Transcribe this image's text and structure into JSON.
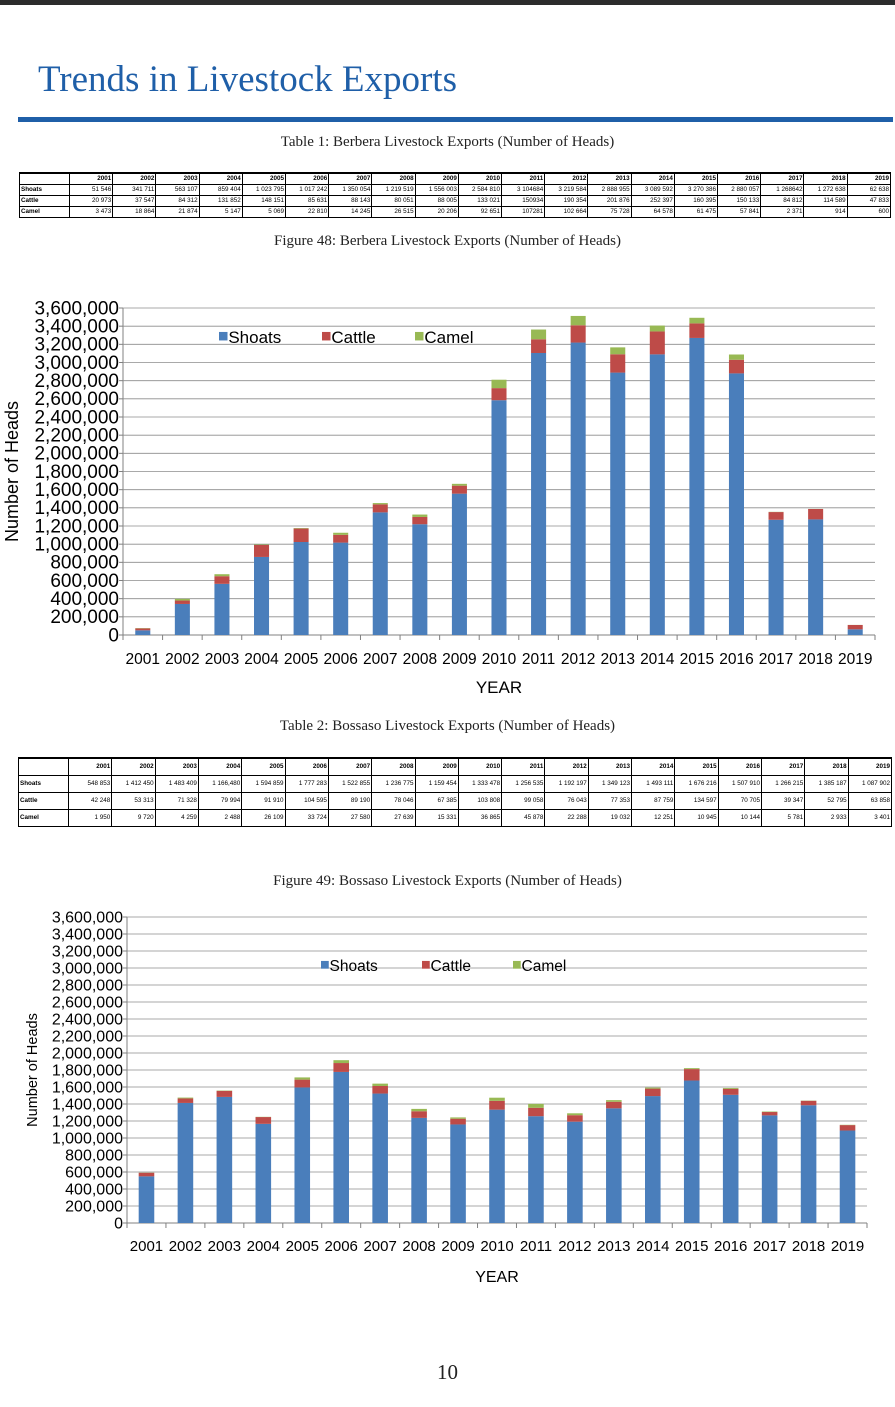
{
  "page": {
    "title": "Trends in Livestock Exports",
    "page_number": "10"
  },
  "table1": {
    "caption": "Table 1: Berbera Livestock Exports (Number of Heads)",
    "years": [
      "2001",
      "2002",
      "2003",
      "2004",
      "2005",
      "2006",
      "2007",
      "2008",
      "2009",
      "2010",
      "2011",
      "2012",
      "2013",
      "2014",
      "2015",
      "2016",
      "2017",
      "2018",
      "2019"
    ],
    "rows": [
      {
        "label": "Shoats",
        "values": [
          "51 546",
          "341 711",
          "563 107",
          "859 404",
          "1 023 795",
          "1 017 242",
          "1 350 054",
          "1 219 519",
          "1 556 003",
          "2 584 810",
          "3 104684",
          "3 219 584",
          "2 888 955",
          "3 089 592",
          "3 270 386",
          "2 880 057",
          "1 268642",
          "1 272 638",
          "62 638"
        ]
      },
      {
        "label": "Cattle",
        "values": [
          "20 973",
          "37 547",
          "84 312",
          "131 852",
          "148 151",
          "85 631",
          "88 143",
          "80 051",
          "88 005",
          "133 021",
          "150934",
          "190 354",
          "201 876",
          "252 397",
          "160 395",
          "150 133",
          "84 812",
          "114 589",
          "47 833"
        ]
      },
      {
        "label": "Camel",
        "values": [
          "3 473",
          "18 864",
          "21 874",
          "5 147",
          "5 069",
          "22 810",
          "14 245",
          "26 515",
          "20 206",
          "92 651",
          "107281",
          "102 664",
          "75 728",
          "64 578",
          "61 475",
          "57 841",
          "2 371",
          "914",
          "600"
        ]
      }
    ]
  },
  "table2": {
    "caption": "Table 2: Bossaso Livestock Exports (Number of Heads)",
    "years": [
      "2001",
      "2002",
      "2003",
      "2004",
      "2005",
      "2006",
      "2007",
      "2008",
      "2009",
      "2010",
      "2011",
      "2012",
      "2013",
      "2014",
      "2015",
      "2016",
      "2017",
      "2018",
      "2019"
    ],
    "rows": [
      {
        "label": "Shoats",
        "values": [
          "548 853",
          "1 412 450",
          "1 483 409",
          "1 166,480",
          "1 594 859",
          "1 777 283",
          "1 522 855",
          "1 236 775",
          "1 159 454",
          "1 333 478",
          "1 256 535",
          "1 192 197",
          "1 349 123",
          "1 493 111",
          "1 676 216",
          "1 507 910",
          "1 266 215",
          "1 385 187",
          "1 087 902"
        ]
      },
      {
        "label": "Cattle",
        "values": [
          "42 248",
          "53 313",
          "71 328",
          "79 994",
          "91 910",
          "104 595",
          "89 190",
          "78 046",
          "67 385",
          "103 808",
          "99 058",
          "76 043",
          "77 353",
          "87 759",
          "134 597",
          "70 705",
          "39 347",
          "52 795",
          "63 858"
        ]
      },
      {
        "label": "Camel",
        "values": [
          "1 950",
          "9 720",
          "4 259",
          "2 488",
          "26 109",
          "33 724",
          "27 580",
          "27 639",
          "15 331",
          "36 865",
          "45 878",
          "22 288",
          "19 032",
          "12 251",
          "10 945",
          "10 144",
          "5 781",
          "2 933",
          "3 401"
        ]
      }
    ]
  },
  "colors": {
    "shoats": "#4a7ebb",
    "cattle": "#be4b48",
    "camel": "#98b954"
  },
  "chart_data": [
    {
      "type": "bar",
      "stacked": true,
      "title": "Figure 48: Berbera Livestock Exports (Number of Heads)",
      "xlabel": "YEAR",
      "ylabel": "Number of Heads",
      "ylim": [
        0,
        3600000
      ],
      "ytick_step": 200000,
      "ytick_labels": [
        "0",
        "200,000",
        "400,000",
        "600,000",
        "800,000",
        "1,000,000",
        "1,200,000",
        "1,400,000",
        "1,600,000",
        "1,800,000",
        "2,000,000",
        "2,200,000",
        "2,400,000",
        "2,600,000",
        "2,800,000",
        "3,000,000",
        "3,200,000",
        "3,400,000",
        "3,600,000"
      ],
      "grid": true,
      "legend_position": "top-left",
      "categories": [
        "2001",
        "2002",
        "2003",
        "2004",
        "2005",
        "2006",
        "2007",
        "2008",
        "2009",
        "2010",
        "2011",
        "2012",
        "2013",
        "2014",
        "2015",
        "2016",
        "2017",
        "2018",
        "2019"
      ],
      "series": [
        {
          "name": "Shoats",
          "color": "#4a7ebb",
          "values": [
            51546,
            341711,
            563107,
            859404,
            1023795,
            1017242,
            1350054,
            1219519,
            1556003,
            2584810,
            3104684,
            3219584,
            2888955,
            3089592,
            3270386,
            2880057,
            1268642,
            1272638,
            62638
          ]
        },
        {
          "name": "Cattle",
          "color": "#be4b48",
          "values": [
            20973,
            37547,
            84312,
            131852,
            148151,
            85631,
            88143,
            80051,
            88005,
            133021,
            150934,
            190354,
            201876,
            252397,
            160395,
            150133,
            84812,
            114589,
            47833
          ]
        },
        {
          "name": "Camel",
          "color": "#98b954",
          "values": [
            3473,
            18864,
            21874,
            5147,
            5069,
            22810,
            14245,
            26515,
            20206,
            92651,
            107281,
            102664,
            75728,
            64578,
            61475,
            57841,
            2371,
            914,
            600
          ]
        }
      ]
    },
    {
      "type": "bar",
      "stacked": true,
      "title": "Figure 49: Bossaso Livestock Exports (Number of Heads)",
      "xlabel": "YEAR",
      "ylabel": "Number of Heads",
      "ylim": [
        0,
        3600000
      ],
      "ytick_step": 200000,
      "ytick_labels": [
        "0",
        "200,000",
        "400,000",
        "600,000",
        "800,000",
        "1,000,000",
        "1,200,000",
        "1,400,000",
        "1,600,000",
        "1,800,000",
        "2,000,000",
        "2,200,000",
        "2,400,000",
        "2,600,000",
        "2,800,000",
        "3,000,000",
        "3,200,000",
        "3,400,000",
        "3,600,000"
      ],
      "grid": true,
      "legend_position": "top-center",
      "categories": [
        "2001",
        "2002",
        "2003",
        "2004",
        "2005",
        "2006",
        "2007",
        "2008",
        "2009",
        "2010",
        "2011",
        "2012",
        "2013",
        "2014",
        "2015",
        "2016",
        "2017",
        "2018",
        "2019"
      ],
      "series": [
        {
          "name": "Shoats",
          "color": "#4a7ebb",
          "values": [
            548853,
            1412450,
            1483409,
            1166480,
            1594859,
            1777283,
            1522855,
            1236775,
            1159454,
            1333478,
            1256535,
            1192197,
            1349123,
            1493111,
            1676216,
            1507910,
            1266215,
            1385187,
            1087902
          ]
        },
        {
          "name": "Cattle",
          "color": "#be4b48",
          "values": [
            42248,
            53313,
            71328,
            79994,
            91910,
            104595,
            89190,
            78046,
            67385,
            103808,
            99058,
            76043,
            77353,
            87759,
            134597,
            70705,
            39347,
            52795,
            63858
          ]
        },
        {
          "name": "Camel",
          "color": "#98b954",
          "values": [
            1950,
            9720,
            4259,
            2488,
            26109,
            33724,
            27580,
            27639,
            15331,
            36865,
            45878,
            22288,
            19032,
            12251,
            10945,
            10144,
            5781,
            2933,
            3401
          ]
        }
      ]
    }
  ]
}
